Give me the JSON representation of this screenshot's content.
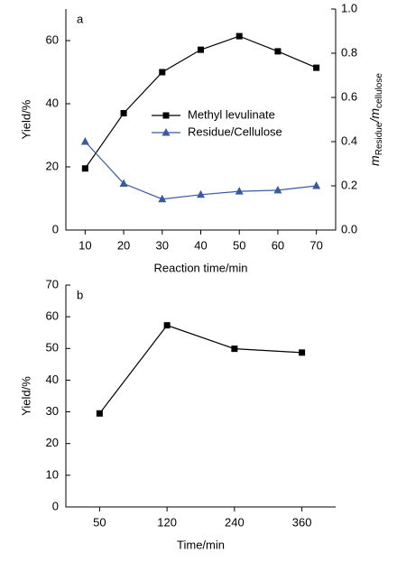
{
  "chart_data": [
    {
      "type": "line",
      "panel": "a",
      "xlabel": "Reaction time/min",
      "ylabel": "Yield/%",
      "y2label": [
        "m",
        "Residue",
        "/m",
        "cellulose"
      ],
      "x": [
        10,
        20,
        30,
        40,
        50,
        60,
        70
      ],
      "xlim": [
        5,
        75
      ],
      "xticks": [
        10,
        20,
        30,
        40,
        50,
        60,
        70
      ],
      "ylim": [
        0,
        70
      ],
      "yticks": [
        0,
        20,
        40,
        60
      ],
      "y2lim": [
        0,
        1
      ],
      "y2ticks": [
        {
          "value": 0,
          "label": "0.0"
        },
        0.2,
        0.4,
        0.6,
        0.8,
        {
          "value": 1,
          "label": "1.0"
        }
      ],
      "series": [
        {
          "name": "Methyl levulinate",
          "color": "#000000",
          "marker": "square",
          "values": [
            19.5,
            37.0,
            50.0,
            57.1,
            61.4,
            56.6,
            51.4
          ]
        },
        {
          "name": "Residue/Cellulose",
          "color": "#3a5aa0",
          "marker": "triangle",
          "axis": "y2",
          "values": [
            0.4,
            0.21,
            0.14,
            0.16,
            0.175,
            0.18,
            0.2
          ]
        }
      ]
    },
    {
      "type": "line",
      "panel": "b",
      "xlabel": "Time/min",
      "ylabel": "Yield/%",
      "categories": [
        "50",
        "120",
        "240",
        "360"
      ],
      "ylim": [
        0,
        70
      ],
      "yticks": [
        0,
        10,
        20,
        30,
        40,
        50,
        60,
        70
      ],
      "series": [
        {
          "color": "#000000",
          "marker": "square",
          "values": [
            29.5,
            57.3,
            49.9,
            48.7
          ]
        }
      ]
    }
  ]
}
